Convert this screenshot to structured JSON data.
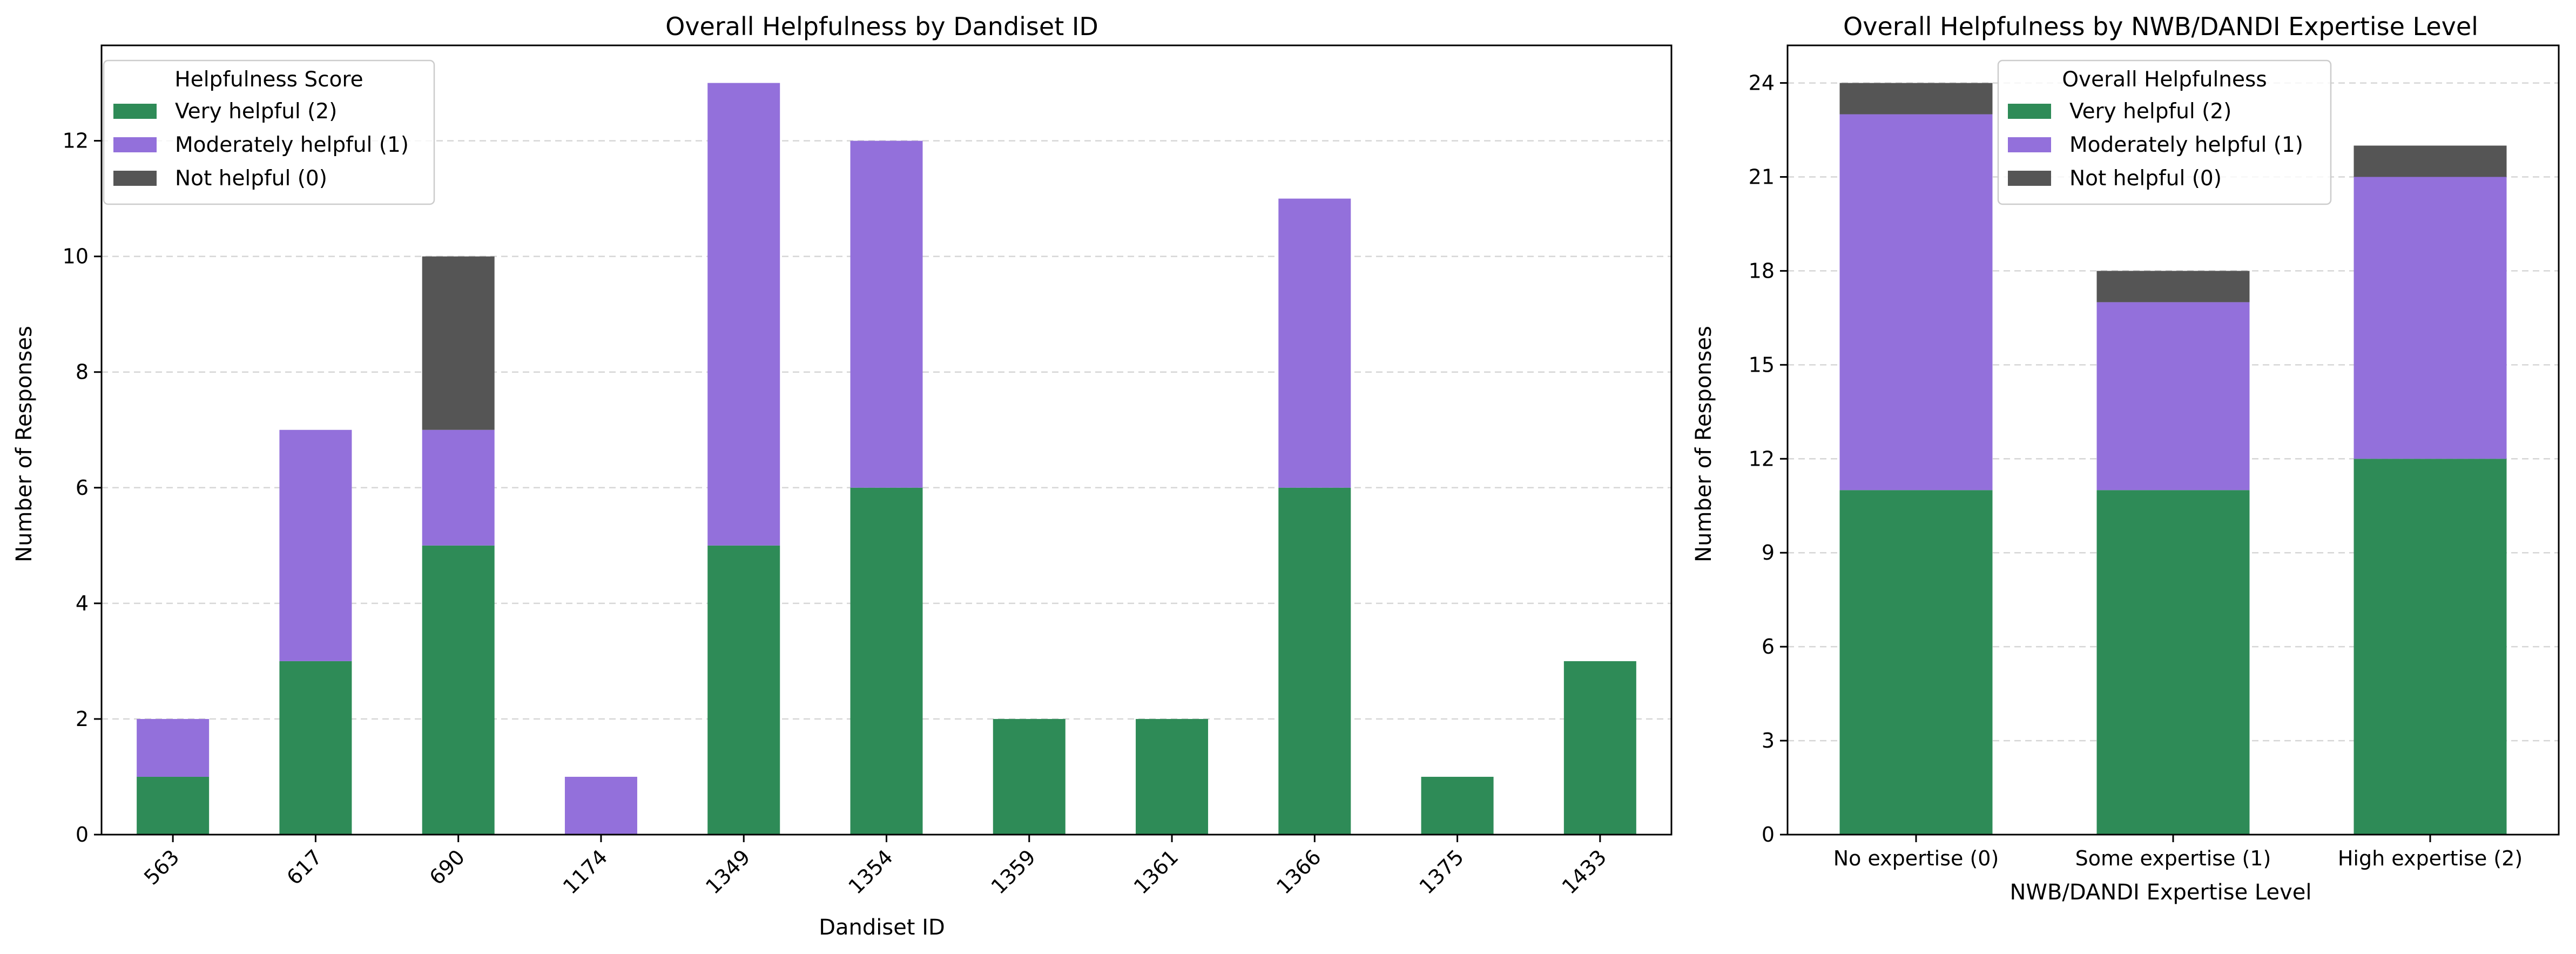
{
  "chart_data": [
    {
      "type": "bar",
      "stacked": true,
      "title": "Overall Helpfulness by Dandiset ID",
      "xlabel": "Dandiset ID",
      "ylabel": "Number of Responses",
      "categories": [
        "563",
        "617",
        "690",
        "1174",
        "1349",
        "1354",
        "1359",
        "1361",
        "1366",
        "1375",
        "1433"
      ],
      "series": [
        {
          "name": "Very helpful (2)",
          "color": "#2e8b57",
          "values": [
            1,
            3,
            5,
            0,
            5,
            6,
            2,
            2,
            6,
            1,
            3
          ]
        },
        {
          "name": "Moderately helpful (1)",
          "color": "#9370db",
          "values": [
            1,
            4,
            2,
            1,
            8,
            6,
            0,
            0,
            5,
            0,
            0
          ]
        },
        {
          "name": "Not helpful (0)",
          "color": "#555555",
          "values": [
            0,
            0,
            3,
            0,
            0,
            0,
            0,
            0,
            0,
            0,
            0
          ]
        }
      ],
      "ylim": [
        0,
        13.65
      ],
      "yticks": [
        0,
        2,
        4,
        6,
        8,
        10,
        12
      ],
      "grid": "horizontal dashed",
      "legend": {
        "title": "Helpfulness Score",
        "position": "top-left"
      },
      "x_tick_rotation": "45"
    },
    {
      "type": "bar",
      "stacked": true,
      "title": "Overall Helpfulness by NWB/DANDI Expertise Level",
      "xlabel": "NWB/DANDI Expertise Level",
      "ylabel": "Number of Responses",
      "categories": [
        "No expertise (0)",
        "Some expertise (1)",
        "High expertise (2)"
      ],
      "series": [
        {
          "name": "Very helpful (2)",
          "color": "#2e8b57",
          "values": [
            11,
            11,
            12
          ]
        },
        {
          "name": "Moderately helpful (1)",
          "color": "#9370db",
          "values": [
            12,
            6,
            9
          ]
        },
        {
          "name": "Not helpful (0)",
          "color": "#555555",
          "values": [
            1,
            1,
            1
          ]
        }
      ],
      "ylim": [
        0,
        25.2
      ],
      "yticks": [
        0,
        3,
        6,
        9,
        12,
        15,
        18,
        21,
        24
      ],
      "grid": "horizontal dashed",
      "legend": {
        "title": "Overall Helpfulness",
        "position": "top-center"
      },
      "x_tick_rotation": "0"
    }
  ]
}
